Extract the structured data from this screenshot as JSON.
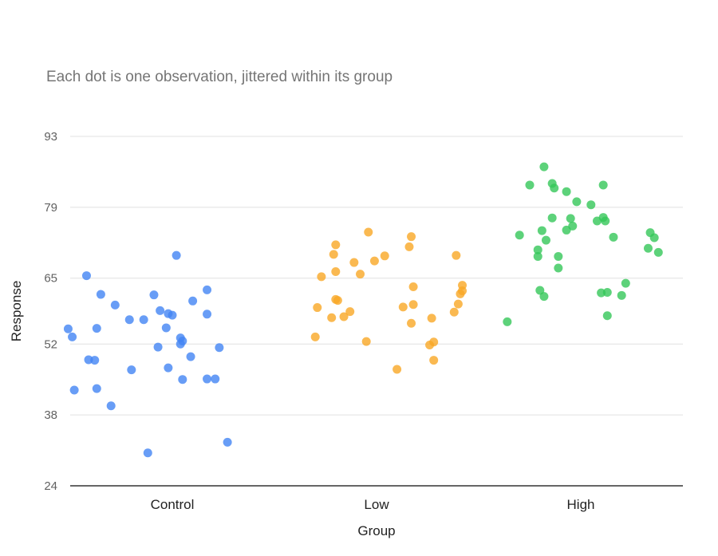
{
  "chart_data": {
    "type": "scatter",
    "subtitle": "Each dot is one observation, jittered within its group",
    "xlabel": "Group",
    "ylabel": "Response",
    "categories": [
      "Control",
      "Low",
      "High"
    ],
    "ylim": [
      24,
      93
    ],
    "yticks": [
      24,
      38,
      52,
      65,
      79,
      93
    ],
    "grid": true,
    "legend": "none",
    "series": [
      {
        "color": "#4285f4",
        "points": [
          {
            "x": -0.42,
            "y": 65.5
          },
          {
            "x": -0.35,
            "y": 61.8
          },
          {
            "x": -0.28,
            "y": 59.7
          },
          {
            "x": -0.09,
            "y": 61.7
          },
          {
            "x": 0.17,
            "y": 62.7
          },
          {
            "x": 0.17,
            "y": 57.9
          },
          {
            "x": 0.02,
            "y": 69.5
          },
          {
            "x": -0.02,
            "y": 58.0
          },
          {
            "x": 0.0,
            "y": 57.7
          },
          {
            "x": -0.06,
            "y": 58.6
          },
          {
            "x": 0.1,
            "y": 60.5
          },
          {
            "x": -0.03,
            "y": 55.2
          },
          {
            "x": -0.14,
            "y": 56.8
          },
          {
            "x": -0.21,
            "y": 56.8
          },
          {
            "x": -0.51,
            "y": 55.0
          },
          {
            "x": -0.37,
            "y": 55.1
          },
          {
            "x": -0.49,
            "y": 53.4
          },
          {
            "x": 0.04,
            "y": 53.2
          },
          {
            "x": 0.05,
            "y": 52.6
          },
          {
            "x": 0.04,
            "y": 52.0
          },
          {
            "x": -0.07,
            "y": 51.4
          },
          {
            "x": 0.23,
            "y": 51.3
          },
          {
            "x": 0.09,
            "y": 49.5
          },
          {
            "x": -0.41,
            "y": 48.9
          },
          {
            "x": -0.38,
            "y": 48.8
          },
          {
            "x": -0.2,
            "y": 46.9
          },
          {
            "x": -0.02,
            "y": 47.3
          },
          {
            "x": 0.05,
            "y": 45.0
          },
          {
            "x": 0.17,
            "y": 45.1
          },
          {
            "x": 0.21,
            "y": 45.1
          },
          {
            "x": -0.48,
            "y": 42.9
          },
          {
            "x": -0.37,
            "y": 43.2
          },
          {
            "x": -0.3,
            "y": 39.8
          },
          {
            "x": 0.27,
            "y": 32.6
          },
          {
            "x": -0.12,
            "y": 30.5
          }
        ]
      },
      {
        "color": "#f9a825",
        "points": [
          {
            "x": -0.04,
            "y": 74.1
          },
          {
            "x": 0.17,
            "y": 73.2
          },
          {
            "x": -0.2,
            "y": 71.6
          },
          {
            "x": 0.16,
            "y": 71.2
          },
          {
            "x": -0.21,
            "y": 69.7
          },
          {
            "x": 0.04,
            "y": 69.4
          },
          {
            "x": 0.39,
            "y": 69.5
          },
          {
            "x": -0.01,
            "y": 68.4
          },
          {
            "x": -0.11,
            "y": 68.1
          },
          {
            "x": -0.2,
            "y": 66.3
          },
          {
            "x": -0.27,
            "y": 65.3
          },
          {
            "x": -0.08,
            "y": 65.8
          },
          {
            "x": 0.18,
            "y": 63.3
          },
          {
            "x": 0.42,
            "y": 63.6
          },
          {
            "x": 0.41,
            "y": 61.9
          },
          {
            "x": 0.42,
            "y": 62.5
          },
          {
            "x": -0.2,
            "y": 60.8
          },
          {
            "x": -0.19,
            "y": 60.6
          },
          {
            "x": 0.18,
            "y": 59.8
          },
          {
            "x": 0.13,
            "y": 59.3
          },
          {
            "x": 0.4,
            "y": 59.9
          },
          {
            "x": -0.29,
            "y": 59.2
          },
          {
            "x": 0.38,
            "y": 58.3
          },
          {
            "x": -0.13,
            "y": 58.4
          },
          {
            "x": -0.22,
            "y": 57.2
          },
          {
            "x": -0.16,
            "y": 57.4
          },
          {
            "x": 0.27,
            "y": 57.1
          },
          {
            "x": 0.17,
            "y": 56.1
          },
          {
            "x": -0.3,
            "y": 53.4
          },
          {
            "x": -0.05,
            "y": 52.5
          },
          {
            "x": 0.28,
            "y": 52.4
          },
          {
            "x": 0.26,
            "y": 51.8
          },
          {
            "x": 0.28,
            "y": 48.8
          },
          {
            "x": 0.1,
            "y": 47.0
          }
        ]
      },
      {
        "color": "#34c759",
        "points": [
          {
            "x": -0.18,
            "y": 87.0
          },
          {
            "x": -0.25,
            "y": 83.4
          },
          {
            "x": -0.14,
            "y": 83.7
          },
          {
            "x": -0.13,
            "y": 82.8
          },
          {
            "x": -0.07,
            "y": 82.1
          },
          {
            "x": 0.11,
            "y": 83.4
          },
          {
            "x": -0.02,
            "y": 80.1
          },
          {
            "x": 0.05,
            "y": 79.5
          },
          {
            "x": -0.14,
            "y": 76.9
          },
          {
            "x": -0.05,
            "y": 76.8
          },
          {
            "x": 0.11,
            "y": 77.0
          },
          {
            "x": 0.08,
            "y": 76.3
          },
          {
            "x": 0.12,
            "y": 76.3
          },
          {
            "x": -0.04,
            "y": 75.3
          },
          {
            "x": -0.07,
            "y": 74.5
          },
          {
            "x": -0.19,
            "y": 74.4
          },
          {
            "x": 0.34,
            "y": 74.0
          },
          {
            "x": -0.3,
            "y": 73.5
          },
          {
            "x": 0.16,
            "y": 73.1
          },
          {
            "x": 0.36,
            "y": 73.0
          },
          {
            "x": -0.17,
            "y": 72.5
          },
          {
            "x": -0.21,
            "y": 70.6
          },
          {
            "x": 0.33,
            "y": 70.9
          },
          {
            "x": 0.38,
            "y": 70.1
          },
          {
            "x": -0.21,
            "y": 69.3
          },
          {
            "x": -0.11,
            "y": 69.3
          },
          {
            "x": -0.11,
            "y": 67.0
          },
          {
            "x": 0.22,
            "y": 64.0
          },
          {
            "x": -0.2,
            "y": 62.6
          },
          {
            "x": -0.18,
            "y": 61.4
          },
          {
            "x": 0.1,
            "y": 62.1
          },
          {
            "x": 0.13,
            "y": 62.2
          },
          {
            "x": 0.2,
            "y": 61.6
          },
          {
            "x": 0.13,
            "y": 57.6
          },
          {
            "x": -0.36,
            "y": 56.4
          }
        ]
      }
    ]
  }
}
